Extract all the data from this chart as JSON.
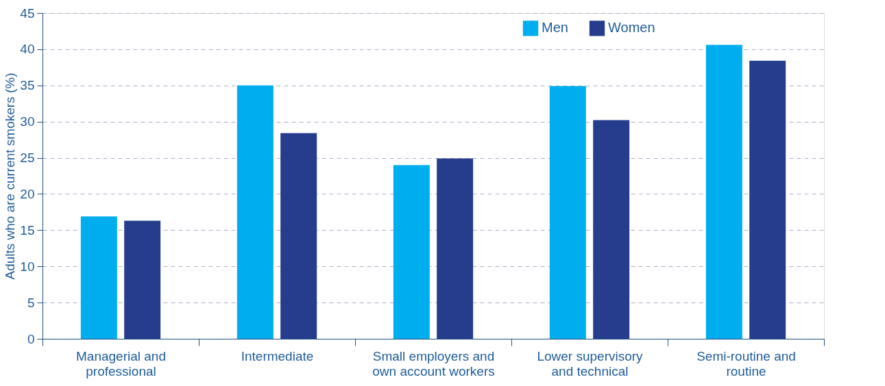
{
  "chart_data": {
    "type": "bar",
    "ylabel": "Adults who are current smokers (%)",
    "categories": [
      "Managerial and professional",
      "Intermediate",
      "Small employers and own account workers",
      "Lower supervisory and technical",
      "Semi-routine and routine"
    ],
    "series": [
      {
        "name": "Men",
        "color": "#00aeef",
        "values": [
          16.9,
          35.0,
          24.0,
          34.9,
          40.6
        ]
      },
      {
        "name": "Women",
        "color": "#253d8c",
        "values": [
          16.3,
          28.4,
          24.9,
          30.2,
          38.4
        ]
      }
    ],
    "ylim": [
      0,
      45
    ],
    "yticks": [
      0,
      5,
      10,
      15,
      20,
      25,
      30,
      35,
      40,
      45
    ],
    "grid": "y",
    "legend": "top right"
  }
}
